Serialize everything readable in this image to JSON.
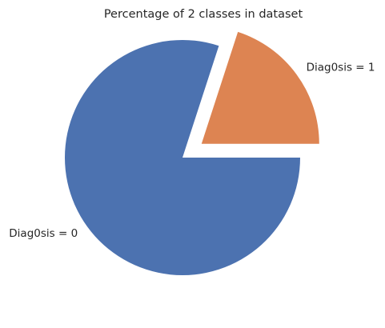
{
  "chart_data": {
    "type": "pie",
    "title": "Percentage of 2 classes in dataset",
    "start_angle_deg": 0,
    "direction": "clockwise",
    "slices": [
      {
        "label": "Diag0sis = 0",
        "value": 0.8,
        "color": "#4c72b0",
        "explode": 0
      },
      {
        "label": "Diag0sis = 1",
        "value": 0.2,
        "color": "#dd8452",
        "explode": 0.2
      }
    ]
  }
}
